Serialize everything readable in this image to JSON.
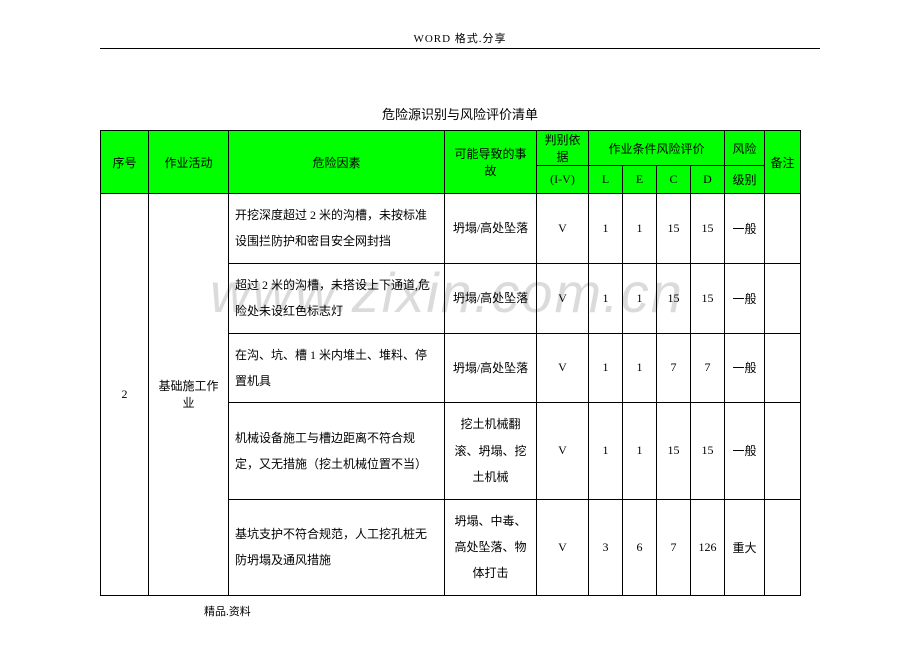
{
  "header": "WORD  格式.分享",
  "title": "危险源识别与风险评价清单",
  "watermark": "www.zixin.com.cn",
  "footer": "精品.资料",
  "table": {
    "header": {
      "seq": "序号",
      "activity": "作业活动",
      "factor": "危险因素",
      "accident": "可能导致的事故",
      "basis": "判别依据",
      "basis_sub": "(I-V)",
      "risk_eval": "作业条件风险评价",
      "L": "L",
      "E": "E",
      "C": "C",
      "D": "D",
      "level": "风险",
      "level_sub": "级别",
      "remark": "备注"
    },
    "seq_value": "2",
    "activity_value": "基础施工作业",
    "rows": [
      {
        "factor": "开挖深度超过 2 米的沟槽，未按标准设围拦防护和密目安全网封挡",
        "accident": "坍塌/高处坠落",
        "basis": "V",
        "L": "1",
        "E": "1",
        "C": "15",
        "D": "15",
        "level": "一般",
        "remark": ""
      },
      {
        "factor": "超过 2 米的沟槽，未搭设上下通道,危险处未设红色标志灯",
        "accident": "坍塌/高处坠落",
        "basis": "V",
        "L": "1",
        "E": "1",
        "C": "15",
        "D": "15",
        "level": "一般",
        "remark": ""
      },
      {
        "factor": "在沟、坑、槽 1 米内堆土、堆料、停置机具",
        "accident": "坍塌/高处坠落",
        "basis": "V",
        "L": "1",
        "E": "1",
        "C": "7",
        "D": "7",
        "level": "一般",
        "remark": ""
      },
      {
        "factor": "机械设备施工与槽边距离不符合规定，又无措施（挖土机械位置不当）",
        "accident": "挖土机械翻滚、坍塌、挖土机械",
        "basis": "V",
        "L": "1",
        "E": "1",
        "C": "15",
        "D": "15",
        "level": "一般",
        "remark": ""
      },
      {
        "factor": "基坑支护不符合规范，人工挖孔桩无防坍塌及通风措施",
        "accident": "坍塌、中毒、高处坠落、物体打击",
        "basis": "V",
        "L": "3",
        "E": "6",
        "C": "7",
        "D": "126",
        "level": "重大",
        "remark": ""
      }
    ]
  }
}
